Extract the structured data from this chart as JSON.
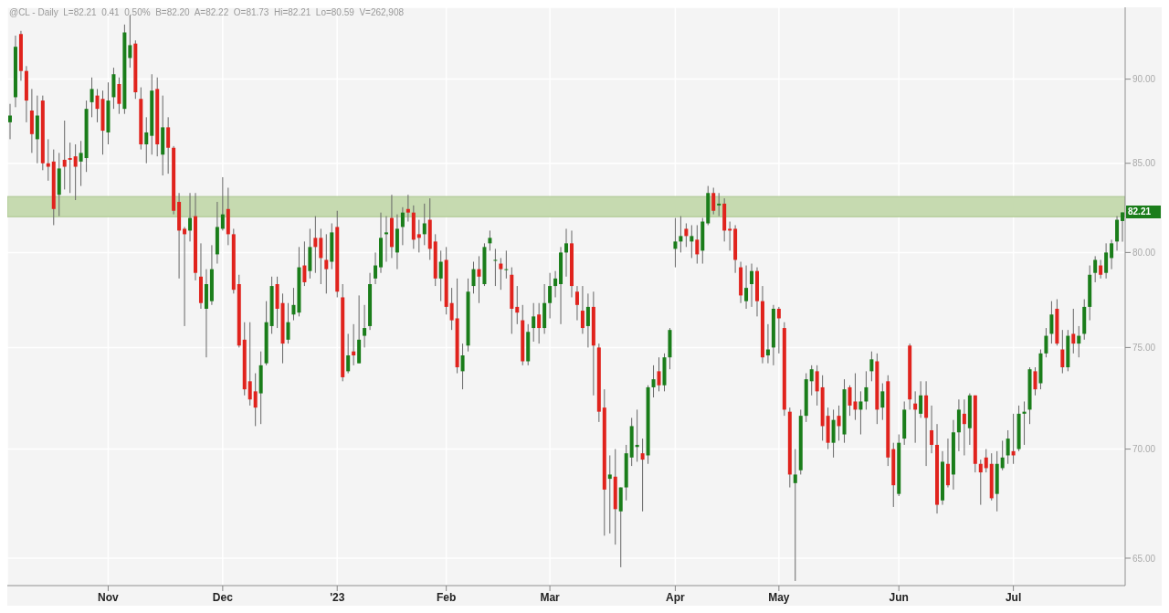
{
  "chart_data": {
    "type": "candlestick",
    "annotations": [
      "@CL - Daily  L=82.21  0.41  0.50%  B=82.20  A=82.22  O=81.73  Hi=82.21  Lo=80.59  V=262,908",
      "82.21"
    ],
    "categories": [
      null,
      null,
      null,
      null,
      null,
      null,
      null,
      null,
      null,
      null,
      null,
      null,
      null,
      null,
      null,
      null,
      null,
      null,
      "Nov",
      null,
      null,
      null,
      null,
      null,
      null,
      null,
      null,
      null,
      null,
      null,
      null,
      null,
      null,
      null,
      null,
      null,
      null,
      null,
      null,
      "Dec",
      null,
      null,
      null,
      null,
      null,
      null,
      null,
      null,
      null,
      null,
      null,
      null,
      null,
      null,
      null,
      null,
      null,
      null,
      null,
      null,
      "'23",
      null,
      null,
      null,
      null,
      null,
      null,
      null,
      null,
      null,
      null,
      null,
      null,
      null,
      null,
      null,
      null,
      null,
      null,
      null,
      "Feb",
      null,
      null,
      null,
      null,
      null,
      null,
      null,
      null,
      null,
      null,
      null,
      null,
      null,
      null,
      null,
      null,
      null,
      null,
      "Mar",
      null,
      null,
      null,
      null,
      null,
      null,
      null,
      null,
      null,
      null,
      null,
      null,
      null,
      null,
      null,
      null,
      null,
      null,
      null,
      null,
      null,
      null,
      "Apr",
      null,
      null,
      null,
      null,
      null,
      null,
      null,
      null,
      null,
      null,
      null,
      null,
      null,
      null,
      null,
      null,
      null,
      null,
      "May",
      null,
      null,
      null,
      null,
      null,
      null,
      null,
      null,
      null,
      null,
      null,
      null,
      null,
      null,
      null,
      null,
      null,
      null,
      null,
      null,
      null,
      "Jun",
      null,
      null,
      null,
      null,
      null,
      null,
      null,
      null,
      null,
      null,
      null,
      null,
      null,
      null,
      null,
      null,
      null,
      null,
      null,
      null,
      "Jul",
      null,
      null,
      null,
      null,
      null,
      null,
      null,
      null,
      null,
      null,
      null,
      null,
      null,
      null,
      null,
      null,
      null,
      null,
      null,
      null
    ],
    "ohlc": [
      [
        87.4,
        88.5,
        86.4,
        87.8
      ],
      [
        88.9,
        92.7,
        88.3,
        92.0
      ],
      [
        92.8,
        93.0,
        89.9,
        90.5
      ],
      [
        90.5,
        90.8,
        87.4,
        88.7
      ],
      [
        88.1,
        89.4,
        85.6,
        86.7
      ],
      [
        86.4,
        89.0,
        85.0,
        87.8
      ],
      [
        88.7,
        89.0,
        84.6,
        85.0
      ],
      [
        85.0,
        86.4,
        84.0,
        84.8
      ],
      [
        85.1,
        85.8,
        81.5,
        82.4
      ],
      [
        83.2,
        85.6,
        82.0,
        84.7
      ],
      [
        85.2,
        87.5,
        83.5,
        84.8
      ],
      [
        85.3,
        86.2,
        83.3,
        85.2
      ],
      [
        85.4,
        86.1,
        82.9,
        84.8
      ],
      [
        85.1,
        86.3,
        83.7,
        85.6
      ],
      [
        85.3,
        88.7,
        84.5,
        88.2
      ],
      [
        88.6,
        90.1,
        87.7,
        89.4
      ],
      [
        89.0,
        89.4,
        87.4,
        88.2
      ],
      [
        88.8,
        89.3,
        85.5,
        86.9
      ],
      [
        86.8,
        89.8,
        86.1,
        88.7
      ],
      [
        88.9,
        90.7,
        88.2,
        90.3
      ],
      [
        89.7,
        90.1,
        87.9,
        88.5
      ],
      [
        88.2,
        93.4,
        87.9,
        92.9
      ],
      [
        91.3,
        94.0,
        90.7,
        92.1
      ],
      [
        92.2,
        92.4,
        88.8,
        89.2
      ],
      [
        88.8,
        89.5,
        85.8,
        86.1
      ],
      [
        86.1,
        87.7,
        85.0,
        86.8
      ],
      [
        86.6,
        90.3,
        85.5,
        89.3
      ],
      [
        89.4,
        90.1,
        85.4,
        86.1
      ],
      [
        85.5,
        89.0,
        84.3,
        87.1
      ],
      [
        87.1,
        87.7,
        84.4,
        85.9
      ],
      [
        85.9,
        86.0,
        82.1,
        82.3
      ],
      [
        82.8,
        83.3,
        78.6,
        81.2
      ],
      [
        81.3,
        81.4,
        76.1,
        81.0
      ],
      [
        81.2,
        83.3,
        80.6,
        81.9
      ],
      [
        82.0,
        83.3,
        78.5,
        78.9
      ],
      [
        78.7,
        80.5,
        77.0,
        77.3
      ],
      [
        77.0,
        79.1,
        74.5,
        78.3
      ],
      [
        77.4,
        80.4,
        77.2,
        79.1
      ],
      [
        79.9,
        82.8,
        79.4,
        81.4
      ],
      [
        81.3,
        84.2,
        81.2,
        82.1
      ],
      [
        82.4,
        83.6,
        80.4,
        81.0
      ],
      [
        81.0,
        81.3,
        77.8,
        78.0
      ],
      [
        78.3,
        78.8,
        75.0,
        75.1
      ],
      [
        75.4,
        76.3,
        72.6,
        72.9
      ],
      [
        73.3,
        76.3,
        72.1,
        72.4
      ],
      [
        72.8,
        73.7,
        71.1,
        72.0
      ],
      [
        72.7,
        74.8,
        71.2,
        74.1
      ],
      [
        74.2,
        77.4,
        74.1,
        76.3
      ],
      [
        76.1,
        78.7,
        75.7,
        78.2
      ],
      [
        78.3,
        78.7,
        76.0,
        77.0
      ],
      [
        77.3,
        77.8,
        74.2,
        75.2
      ],
      [
        75.4,
        77.3,
        75.2,
        76.3
      ],
      [
        76.7,
        78.1,
        76.4,
        77.2
      ],
      [
        76.8,
        80.3,
        76.6,
        79.2
      ],
      [
        79.3,
        80.6,
        78.2,
        78.4
      ],
      [
        79.0,
        81.3,
        78.6,
        80.3
      ],
      [
        80.8,
        82.0,
        78.9,
        80.3
      ],
      [
        80.8,
        81.3,
        78.3,
        79.7
      ],
      [
        79.6,
        81.0,
        77.8,
        79.1
      ],
      [
        79.5,
        81.6,
        79.1,
        81.1
      ],
      [
        81.4,
        82.3,
        77.6,
        77.9
      ],
      [
        77.6,
        78.3,
        73.3,
        73.5
      ],
      [
        73.8,
        75.7,
        73.7,
        74.6
      ],
      [
        74.8,
        76.2,
        74.1,
        74.6
      ],
      [
        74.2,
        77.7,
        74.2,
        75.4
      ],
      [
        75.6,
        77.2,
        75.0,
        76.0
      ],
      [
        76.1,
        78.9,
        75.9,
        78.3
      ],
      [
        78.6,
        80.0,
        78.3,
        79.3
      ],
      [
        79.2,
        82.2,
        78.9,
        80.8
      ],
      [
        81.0,
        82.0,
        79.5,
        81.1
      ],
      [
        81.9,
        83.2,
        79.7,
        80.3
      ],
      [
        80.0,
        82.1,
        79.1,
        81.3
      ],
      [
        81.4,
        82.5,
        80.4,
        82.2
      ],
      [
        82.4,
        83.2,
        81.7,
        82.2
      ],
      [
        82.2,
        82.6,
        80.2,
        80.7
      ],
      [
        81.0,
        81.8,
        80.0,
        80.8
      ],
      [
        81.0,
        82.7,
        80.4,
        81.6
      ],
      [
        81.8,
        83.0,
        79.6,
        80.2
      ],
      [
        80.6,
        81.0,
        78.2,
        78.6
      ],
      [
        78.6,
        80.1,
        77.4,
        79.5
      ],
      [
        79.6,
        80.3,
        76.7,
        77.1
      ],
      [
        77.3,
        78.1,
        75.9,
        76.4
      ],
      [
        76.5,
        78.6,
        73.7,
        74.0
      ],
      [
        73.8,
        75.2,
        72.9,
        74.6
      ],
      [
        75.1,
        78.6,
        74.8,
        77.9
      ],
      [
        78.2,
        79.5,
        77.8,
        79.1
      ],
      [
        79.1,
        79.8,
        77.3,
        78.7
      ],
      [
        78.3,
        80.5,
        78.2,
        80.3
      ],
      [
        80.5,
        81.2,
        80.1,
        80.8
      ],
      [
        79.6,
        80.2,
        78.2,
        79.6
      ],
      [
        79.4,
        79.7,
        78.0,
        79.1
      ],
      [
        79.1,
        80.1,
        78.6,
        79.1
      ],
      [
        78.8,
        79.2,
        75.7,
        77.0
      ],
      [
        77.1,
        78.2,
        76.2,
        76.8
      ],
      [
        76.4,
        77.2,
        74.1,
        74.3
      ],
      [
        74.3,
        76.2,
        74.1,
        75.8
      ],
      [
        76.0,
        77.3,
        75.3,
        76.6
      ],
      [
        76.7,
        77.3,
        75.2,
        76.0
      ],
      [
        76.0,
        78.3,
        75.7,
        77.3
      ],
      [
        77.3,
        78.9,
        76.5,
        78.2
      ],
      [
        78.2,
        79.0,
        77.6,
        78.6
      ],
      [
        78.3,
        80.3,
        76.2,
        80.0
      ],
      [
        80.0,
        81.3,
        78.7,
        80.5
      ],
      [
        80.5,
        81.2,
        77.6,
        78.2
      ],
      [
        77.9,
        78.2,
        76.4,
        77.2
      ],
      [
        76.9,
        78.2,
        75.7,
        76.0
      ],
      [
        76.1,
        77.8,
        75.0,
        77.1
      ],
      [
        77.1,
        77.9,
        72.6,
        75.1
      ],
      [
        75.0,
        75.2,
        71.3,
        71.8
      ],
      [
        72.0,
        72.9,
        66.0,
        68.1
      ],
      [
        68.6,
        69.7,
        66.1,
        68.8
      ],
      [
        68.7,
        70.0,
        65.6,
        67.2
      ],
      [
        67.1,
        68.2,
        64.6,
        68.2
      ],
      [
        68.2,
        70.2,
        67.6,
        69.8
      ],
      [
        69.6,
        71.5,
        69.2,
        71.1
      ],
      [
        70.1,
        71.9,
        69.4,
        70.2
      ],
      [
        69.8,
        70.5,
        67.1,
        69.5
      ],
      [
        69.7,
        73.1,
        69.3,
        73.0
      ],
      [
        73.0,
        74.1,
        72.5,
        73.4
      ],
      [
        73.8,
        74.5,
        72.8,
        73.1
      ],
      [
        73.1,
        74.7,
        72.8,
        74.5
      ],
      [
        74.5,
        76.0,
        73.9,
        75.9
      ],
      [
        80.2,
        81.9,
        79.2,
        80.6
      ],
      [
        80.6,
        82.0,
        80.0,
        80.9
      ],
      [
        81.3,
        81.6,
        80.3,
        80.9
      ],
      [
        80.6,
        81.5,
        79.7,
        80.9
      ],
      [
        80.7,
        81.5,
        79.4,
        79.9
      ],
      [
        80.1,
        81.9,
        79.4,
        81.7
      ],
      [
        81.6,
        83.7,
        81.5,
        83.3
      ],
      [
        83.3,
        83.6,
        82.1,
        82.3
      ],
      [
        82.6,
        83.3,
        82.0,
        82.7
      ],
      [
        82.7,
        83.0,
        80.6,
        81.2
      ],
      [
        81.3,
        81.7,
        80.1,
        81.2
      ],
      [
        81.3,
        81.5,
        78.9,
        79.6
      ],
      [
        79.2,
        79.5,
        77.3,
        77.7
      ],
      [
        77.4,
        79.3,
        77.0,
        78.1
      ],
      [
        78.3,
        79.4,
        77.1,
        79.0
      ],
      [
        79.0,
        79.2,
        76.6,
        77.4
      ],
      [
        77.4,
        78.2,
        74.2,
        74.5
      ],
      [
        74.6,
        76.2,
        74.2,
        74.9
      ],
      [
        75.0,
        77.2,
        74.1,
        77.0
      ],
      [
        77.0,
        77.1,
        74.7,
        76.5
      ],
      [
        76.0,
        76.3,
        71.6,
        71.9
      ],
      [
        71.8,
        72.0,
        68.2,
        68.8
      ],
      [
        68.4,
        70.0,
        64.0,
        68.8
      ],
      [
        69.0,
        71.9,
        68.8,
        71.6
      ],
      [
        71.6,
        73.7,
        71.3,
        73.4
      ],
      [
        73.3,
        74.1,
        72.6,
        73.9
      ],
      [
        73.8,
        74.1,
        72.1,
        72.8
      ],
      [
        73.0,
        73.6,
        70.4,
        71.1
      ],
      [
        71.6,
        72.0,
        70.0,
        70.3
      ],
      [
        70.3,
        71.9,
        69.6,
        71.4
      ],
      [
        71.6,
        72.1,
        70.4,
        71.1
      ],
      [
        70.7,
        73.4,
        70.3,
        72.9
      ],
      [
        73.0,
        73.1,
        71.6,
        72.1
      ],
      [
        72.3,
        73.7,
        71.4,
        71.9
      ],
      [
        71.9,
        72.8,
        70.7,
        72.3
      ],
      [
        72.3,
        73.8,
        71.9,
        73.0
      ],
      [
        73.8,
        74.8,
        73.3,
        74.4
      ],
      [
        74.3,
        74.7,
        71.2,
        71.9
      ],
      [
        72.0,
        73.2,
        71.4,
        72.8
      ],
      [
        73.3,
        73.6,
        69.2,
        69.6
      ],
      [
        70.0,
        70.3,
        67.3,
        68.3
      ],
      [
        67.9,
        70.7,
        67.8,
        70.3
      ],
      [
        70.5,
        72.3,
        70.2,
        71.9
      ],
      [
        75.1,
        75.2,
        71.9,
        72.4
      ],
      [
        72.2,
        72.8,
        70.3,
        71.9
      ],
      [
        71.7,
        73.3,
        71.5,
        72.6
      ],
      [
        72.6,
        73.3,
        69.2,
        71.5
      ],
      [
        70.9,
        72.1,
        69.8,
        70.2
      ],
      [
        70.2,
        71.2,
        67.0,
        67.4
      ],
      [
        67.6,
        69.9,
        67.4,
        69.4
      ],
      [
        69.3,
        70.5,
        68.2,
        68.3
      ],
      [
        68.8,
        71.4,
        68.1,
        70.8
      ],
      [
        70.8,
        72.4,
        69.9,
        71.9
      ],
      [
        71.7,
        72.4,
        69.7,
        71.2
      ],
      [
        71.0,
        72.7,
        70.2,
        72.6
      ],
      [
        72.6,
        72.6,
        68.9,
        69.3
      ],
      [
        69.3,
        69.5,
        67.4,
        68.9
      ],
      [
        69.6,
        70.0,
        68.9,
        69.1
      ],
      [
        69.3,
        69.8,
        67.6,
        67.7
      ],
      [
        67.9,
        69.9,
        67.1,
        69.3
      ],
      [
        69.1,
        70.4,
        69.0,
        69.6
      ],
      [
        69.7,
        70.9,
        69.3,
        70.5
      ],
      [
        69.9,
        71.7,
        69.3,
        69.7
      ],
      [
        70.0,
        72.1,
        69.9,
        71.7
      ],
      [
        71.7,
        72.3,
        70.2,
        71.8
      ],
      [
        71.9,
        74.0,
        71.2,
        73.9
      ],
      [
        73.8,
        74.0,
        72.6,
        72.9
      ],
      [
        73.2,
        74.9,
        72.9,
        74.7
      ],
      [
        74.7,
        76.0,
        74.5,
        75.6
      ],
      [
        75.7,
        77.4,
        75.2,
        76.7
      ],
      [
        77.0,
        77.5,
        75.1,
        75.2
      ],
      [
        74.9,
        75.9,
        73.7,
        74.0
      ],
      [
        74.0,
        75.9,
        73.8,
        75.6
      ],
      [
        75.7,
        77.0,
        74.7,
        75.2
      ],
      [
        75.2,
        76.1,
        74.5,
        75.6
      ],
      [
        75.7,
        77.5,
        75.4,
        77.1
      ],
      [
        77.1,
        79.3,
        76.4,
        78.8
      ],
      [
        78.9,
        79.8,
        78.4,
        79.6
      ],
      [
        79.3,
        79.6,
        78.6,
        78.8
      ],
      [
        78.9,
        80.5,
        78.6,
        80.0
      ],
      [
        79.7,
        80.7,
        79.1,
        80.5
      ],
      [
        80.6,
        82.0,
        80.1,
        81.8
      ],
      [
        81.73,
        82.21,
        80.59,
        82.21
      ]
    ],
    "log": true,
    "ylim": [
      63.8,
      94.5
    ],
    "yticks": [
      {
        "value": 65,
        "label": "65.00"
      },
      {
        "value": 70,
        "label": "70.00"
      },
      {
        "value": 75,
        "label": "75.00"
      },
      {
        "value": 80,
        "label": "80.00"
      },
      {
        "value": 85,
        "label": "85.00"
      },
      {
        "value": 90,
        "label": "90.00"
      }
    ],
    "bands": [
      {
        "axis": "y",
        "from": 81.97,
        "to": 83.1,
        "color": "#c6dab0"
      }
    ],
    "grid": true
  }
}
